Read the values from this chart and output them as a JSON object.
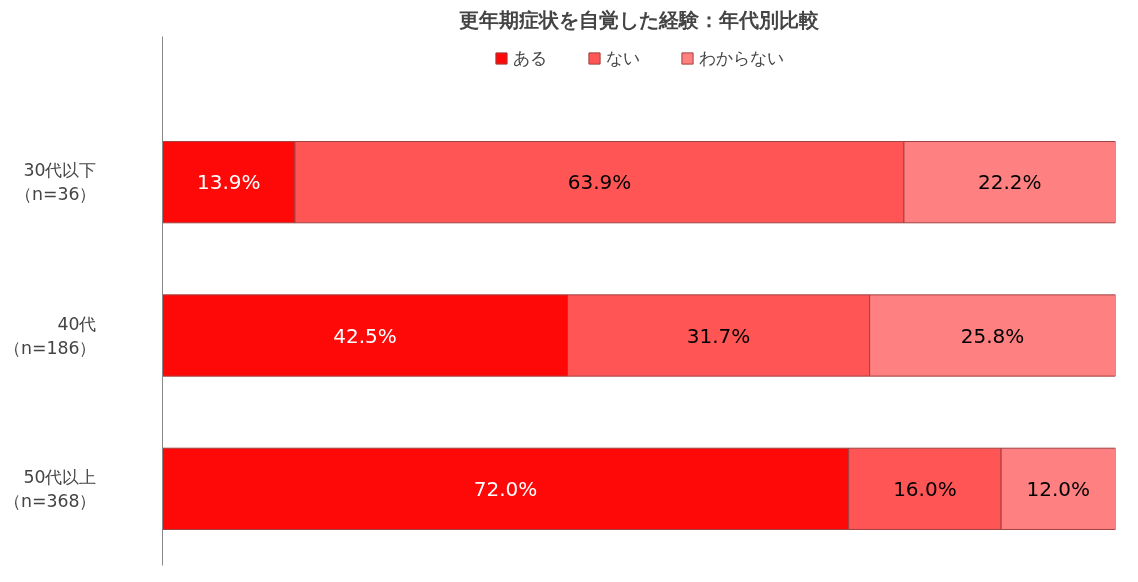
{
  "chart_data": {
    "type": "bar",
    "orientation": "horizontal",
    "stacked": true,
    "title": "更年期症状を自覚した経験：年代別比較",
    "categories": [
      "30代以下（n=36）",
      "40代（n=186）",
      "50代以上（n=368）"
    ],
    "series": [
      {
        "name": "ある",
        "color": "#ff0808",
        "values": [
          13.9,
          42.5,
          72.0
        ],
        "value_labels": [
          "13.9%",
          "42.5%",
          "72.0%"
        ]
      },
      {
        "name": "ない",
        "color": "#ff5555",
        "values": [
          63.9,
          31.7,
          16.0
        ],
        "value_labels": [
          "63.9%",
          "31.7%",
          "16.0%"
        ]
      },
      {
        "name": "わからない",
        "color": "#ff8080",
        "values": [
          22.2,
          25.8,
          12.0
        ],
        "value_labels": [
          "22.2%",
          "25.8%",
          "12.0%"
        ]
      }
    ],
    "legend": "top",
    "grid": false
  }
}
